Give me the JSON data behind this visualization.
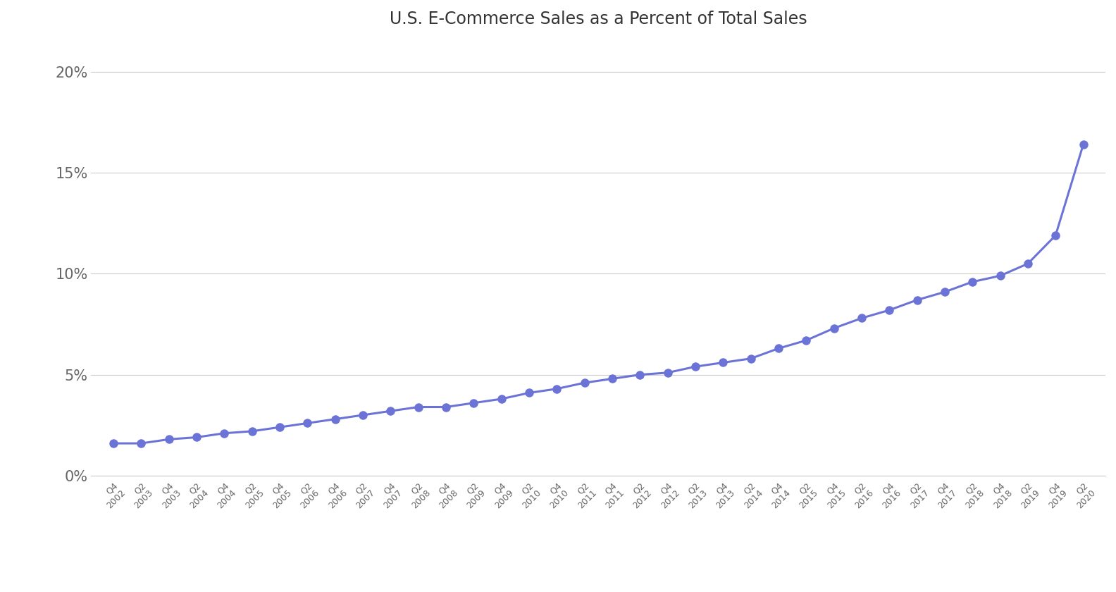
{
  "title": "U.S. E-Commerce Sales as a Percent of Total Sales",
  "title_fontsize": 17,
  "background_color": "#ffffff",
  "line_color": "#6b74d6",
  "marker_color": "#6b74d6",
  "grid_color": "#cccccc",
  "tick_color": "#666666",
  "ylim": [
    0,
    0.215
  ],
  "yticks": [
    0,
    0.05,
    0.1,
    0.15,
    0.2
  ],
  "ytick_labels": [
    "0%",
    "5%",
    "10%",
    "15%",
    "20%"
  ],
  "quarters": [
    "2002 Q4",
    "2003 Q2",
    "2003 Q4",
    "2004 Q2",
    "2004 Q4",
    "2005 Q2",
    "2005 Q4",
    "2006 Q2",
    "2006 Q4",
    "2007 Q2",
    "2007 Q4",
    "2008 Q2",
    "2008 Q4",
    "2009 Q2",
    "2009 Q4",
    "2010 Q2",
    "2010 Q4",
    "2011 Q2",
    "2011 Q4",
    "2012 Q2",
    "2012 Q4",
    "2013 Q2",
    "2013 Q4",
    "2014 Q2",
    "2014 Q4",
    "2015 Q2",
    "2015 Q4",
    "2016 Q2",
    "2016 Q4",
    "2017 Q2",
    "2017 Q4",
    "2018 Q2",
    "2018 Q4",
    "2019 Q2",
    "2019 Q4",
    "2020 Q2"
  ],
  "values": [
    0.016,
    0.016,
    0.018,
    0.019,
    0.021,
    0.022,
    0.024,
    0.026,
    0.028,
    0.03,
    0.032,
    0.034,
    0.034,
    0.036,
    0.038,
    0.041,
    0.043,
    0.046,
    0.048,
    0.05,
    0.051,
    0.054,
    0.056,
    0.058,
    0.063,
    0.067,
    0.073,
    0.078,
    0.082,
    0.087,
    0.091,
    0.096,
    0.099,
    0.105,
    0.119,
    0.164
  ]
}
